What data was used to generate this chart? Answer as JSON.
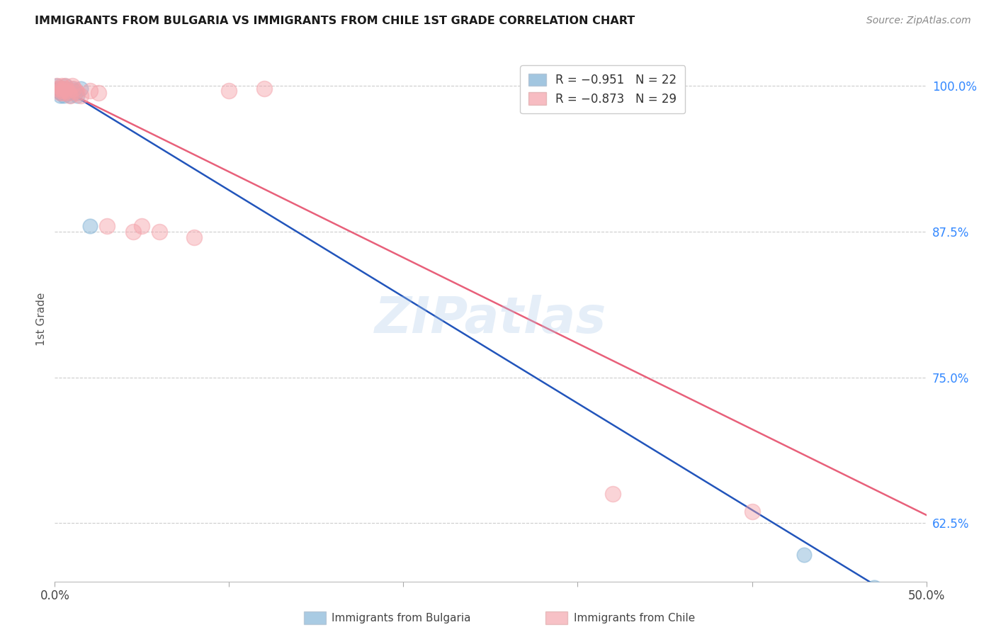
{
  "title": "IMMIGRANTS FROM BULGARIA VS IMMIGRANTS FROM CHILE 1ST GRADE CORRELATION CHART",
  "source": "Source: ZipAtlas.com",
  "ylabel": "1st Grade",
  "ylabel_right_ticks": [
    "100.0%",
    "87.5%",
    "75.0%",
    "62.5%"
  ],
  "ylabel_right_vals": [
    1.0,
    0.875,
    0.75,
    0.625
  ],
  "xmin": 0.0,
  "xmax": 0.5,
  "ymin": 0.575,
  "ymax": 1.025,
  "legend_r1": "R = −0.951",
  "legend_n1": "N = 22",
  "legend_r2": "R = −0.873",
  "legend_n2": "N = 29",
  "bulgaria_color": "#7BAFD4",
  "chile_color": "#F4A0A8",
  "blue_line_color": "#2255BB",
  "pink_line_color": "#E8607A",
  "watermark": "ZIPatlas",
  "grid_color": "#CCCCCC",
  "bulgaria_scatter": [
    [
      0.001,
      1.0
    ],
    [
      0.002,
      0.998
    ],
    [
      0.002,
      0.996
    ],
    [
      0.003,
      0.994
    ],
    [
      0.003,
      0.992
    ],
    [
      0.004,
      0.998
    ],
    [
      0.004,
      0.996
    ],
    [
      0.005,
      0.994
    ],
    [
      0.005,
      0.992
    ],
    [
      0.006,
      1.0
    ],
    [
      0.006,
      0.998
    ],
    [
      0.007,
      0.996
    ],
    [
      0.008,
      0.994
    ],
    [
      0.009,
      0.992
    ],
    [
      0.01,
      0.998
    ],
    [
      0.011,
      0.996
    ],
    [
      0.012,
      0.994
    ],
    [
      0.013,
      0.992
    ],
    [
      0.015,
      0.998
    ],
    [
      0.02,
      0.88
    ],
    [
      0.43,
      0.598
    ],
    [
      0.47,
      0.57
    ]
  ],
  "chile_scatter": [
    [
      0.001,
      1.0
    ],
    [
      0.002,
      0.998
    ],
    [
      0.003,
      0.996
    ],
    [
      0.003,
      0.994
    ],
    [
      0.004,
      1.0
    ],
    [
      0.004,
      0.998
    ],
    [
      0.005,
      0.996
    ],
    [
      0.005,
      0.994
    ],
    [
      0.006,
      1.0
    ],
    [
      0.006,
      0.998
    ],
    [
      0.007,
      0.996
    ],
    [
      0.008,
      0.994
    ],
    [
      0.009,
      0.992
    ],
    [
      0.01,
      1.0
    ],
    [
      0.011,
      0.998
    ],
    [
      0.012,
      0.996
    ],
    [
      0.013,
      0.994
    ],
    [
      0.015,
      0.992
    ],
    [
      0.02,
      0.996
    ],
    [
      0.025,
      0.994
    ],
    [
      0.03,
      0.88
    ],
    [
      0.045,
      0.875
    ],
    [
      0.05,
      0.88
    ],
    [
      0.06,
      0.875
    ],
    [
      0.08,
      0.87
    ],
    [
      0.1,
      0.996
    ],
    [
      0.12,
      0.998
    ],
    [
      0.32,
      0.65
    ],
    [
      0.4,
      0.635
    ]
  ],
  "blue_line_x": [
    0.0,
    0.5
  ],
  "blue_line_y": [
    1.002,
    0.545
  ],
  "pink_line_x": [
    0.0,
    0.5
  ],
  "pink_line_y": [
    1.0,
    0.632
  ]
}
